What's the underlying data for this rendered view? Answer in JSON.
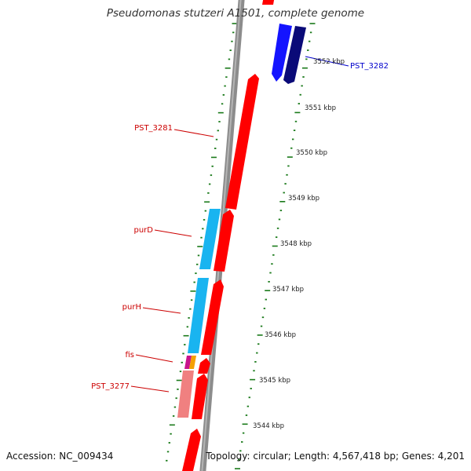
{
  "title": "Pseudomonas stutzeri A1501, complete genome",
  "footer": {
    "accession": "Accession: NC_009434",
    "summary": "Topology: circular; Length: 4,567,418 bp; Genes: 4,201"
  },
  "colors": {
    "backbone": "#8c8c8c",
    "tick": "#1a7a1a",
    "gene_red": "#ff0000",
    "gene_cyan": "#19b4f0",
    "gene_blue": "#1414ff",
    "gene_navy": "#0a0a78",
    "gene_magenta": "#c8148c",
    "gene_orange": "#f5a000",
    "gene_pink": "#f08080",
    "label_red": "#cc0000",
    "label_blue": "#0000cc"
  },
  "scale": [
    {
      "label": "3552 kbp",
      "kbp": 3552
    },
    {
      "label": "3551 kbp",
      "kbp": 3551
    },
    {
      "label": "3550 kbp",
      "kbp": 3550
    },
    {
      "label": "3549 kbp",
      "kbp": 3549
    },
    {
      "label": "3548 kbp",
      "kbp": 3548
    },
    {
      "label": "3547 kbp",
      "kbp": 3547
    },
    {
      "label": "3546 kbp",
      "kbp": 3546
    },
    {
      "label": "3545 kbp",
      "kbp": 3545
    },
    {
      "label": "3544 kbp",
      "kbp": 3544
    }
  ],
  "gene_labels": [
    {
      "text": "PST_3282",
      "color": "label_blue"
    },
    {
      "text": "PST_3281",
      "color": "label_red"
    },
    {
      "text": "purD",
      "color": "label_red"
    },
    {
      "text": "purH",
      "color": "label_red"
    },
    {
      "text": "fis",
      "color": "label_red"
    },
    {
      "text": "PST_3277",
      "color": "label_red"
    }
  ]
}
